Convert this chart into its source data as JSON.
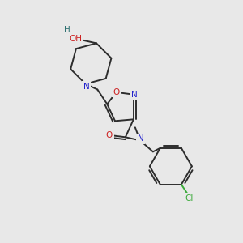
{
  "background_color": "#e8e8e8",
  "bond_color": "#2d2d2d",
  "atom_colors": {
    "N": "#2020cc",
    "O": "#cc2020",
    "Cl": "#3aaa3a",
    "H": "#2d7070",
    "C": "#2d2d2d"
  }
}
